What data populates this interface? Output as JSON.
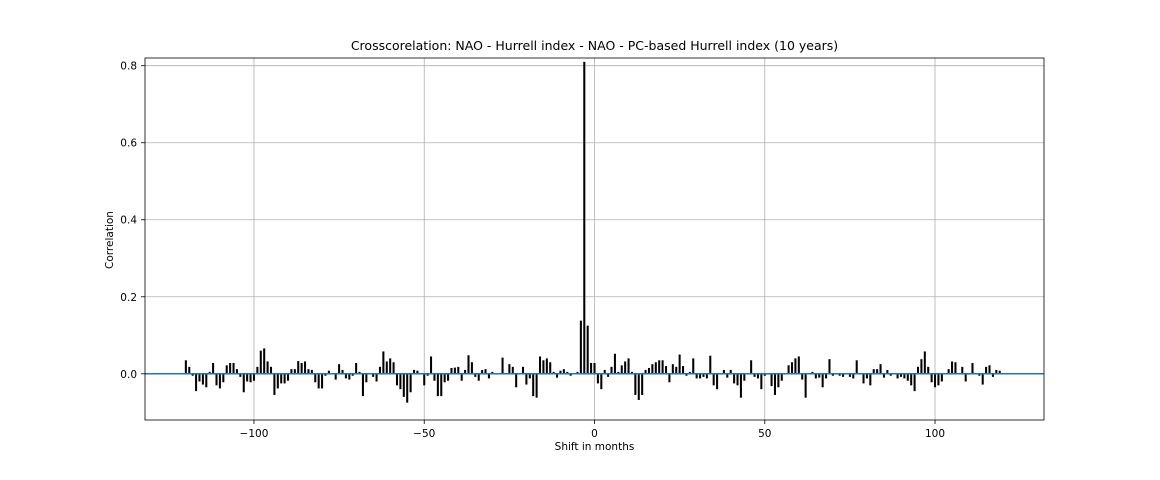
{
  "chart_data": {
    "type": "bar",
    "title": "Crosscorelation: NAO - Hurrell index - NAO - PC-based Hurrell index (10 years)",
    "xlabel": "Shift in months",
    "ylabel": "Correlation",
    "xlim": [
      -132,
      132
    ],
    "ylim": [
      -0.12,
      0.82
    ],
    "xticks": [
      -100,
      -50,
      0,
      50,
      100
    ],
    "xtick_labels": [
      "−100",
      "−50",
      "0",
      "50",
      "100"
    ],
    "yticks": [
      0.0,
      0.2,
      0.4,
      0.6,
      0.8
    ],
    "ytick_labels": [
      "0.0",
      "0.2",
      "0.4",
      "0.6",
      "0.8"
    ],
    "grid": true,
    "bar_color": "#000000",
    "zero_line_color": "#1f77b4",
    "x_start": -120,
    "x_step": 1,
    "values": [
      0.035,
      0.018,
      -0.005,
      -0.045,
      -0.02,
      -0.028,
      -0.035,
      0.005,
      0.028,
      -0.03,
      -0.038,
      -0.022,
      0.022,
      0.028,
      0.028,
      0.012,
      -0.008,
      -0.048,
      -0.02,
      -0.022,
      -0.018,
      0.018,
      0.06,
      0.066,
      0.032,
      0.018,
      -0.055,
      -0.038,
      -0.025,
      -0.025,
      -0.018,
      0.012,
      0.012,
      0.033,
      0.028,
      0.032,
      0.012,
      0.01,
      -0.022,
      -0.038,
      -0.038,
      -0.005,
      0.008,
      0.002,
      -0.015,
      0.025,
      0.01,
      -0.012,
      -0.015,
      -0.005,
      0.028,
      0.005,
      -0.058,
      -0.022,
      0.002,
      -0.008,
      -0.02,
      0.018,
      0.058,
      0.032,
      0.04,
      0.03,
      -0.03,
      -0.04,
      -0.06,
      -0.075,
      -0.048,
      0.01,
      0.008,
      0.002,
      -0.03,
      -0.005,
      0.045,
      -0.018,
      -0.058,
      -0.058,
      -0.022,
      -0.018,
      0.015,
      0.016,
      0.018,
      -0.018,
      0.01,
      0.048,
      0.03,
      -0.008,
      -0.018,
      0.01,
      0.012,
      -0.012,
      0.005,
      0.002,
      0.0,
      0.042,
      0.002,
      0.025,
      0.018,
      -0.035,
      0.002,
      0.018,
      -0.028,
      -0.012,
      -0.058,
      -0.062,
      0.045,
      0.035,
      0.04,
      0.03,
      0.005,
      -0.01,
      0.008,
      0.012,
      0.005,
      -0.005,
      0.002,
      0.005,
      0.138,
      0.81,
      0.125,
      0.028,
      0.028,
      -0.025,
      -0.04,
      0.01,
      -0.008,
      0.018,
      0.052,
      0.005,
      0.022,
      0.032,
      0.04,
      0.005,
      -0.055,
      -0.068,
      -0.055,
      0.01,
      0.015,
      0.025,
      0.03,
      0.035,
      0.035,
      0.02,
      -0.022,
      0.025,
      0.018,
      0.05,
      0.02,
      -0.005,
      0.005,
      0.04,
      -0.012,
      -0.012,
      -0.008,
      -0.012,
      0.047,
      -0.03,
      -0.04,
      -0.002,
      0.01,
      -0.01,
      0.01,
      -0.025,
      -0.03,
      -0.062,
      -0.018,
      0.002,
      0.035,
      -0.008,
      -0.012,
      -0.04,
      -0.005,
      -0.002,
      -0.032,
      -0.055,
      -0.035,
      -0.018,
      -0.002,
      0.022,
      0.03,
      0.04,
      0.045,
      -0.015,
      -0.062,
      0.002,
      0.005,
      -0.012,
      -0.01,
      -0.035,
      -0.012,
      0.038,
      -0.005,
      -0.002,
      -0.005,
      -0.008,
      0.001,
      -0.008,
      -0.012,
      0.035,
      -0.002,
      -0.025,
      -0.012,
      -0.03,
      0.012,
      0.012,
      0.025,
      -0.01,
      0.01,
      -0.005,
      0.001,
      -0.012,
      -0.008,
      -0.012,
      -0.018,
      -0.03,
      -0.045,
      0.018,
      0.038,
      0.058,
      0.018,
      -0.022,
      -0.035,
      -0.03,
      -0.02,
      0.002,
      0.012,
      0.032,
      0.03,
      0.002,
      0.018,
      -0.02,
      -0.002,
      0.028,
      0.002,
      -0.005,
      -0.028,
      0.018,
      0.022,
      -0.008,
      0.01,
      0.008,
      0.002
    ]
  }
}
